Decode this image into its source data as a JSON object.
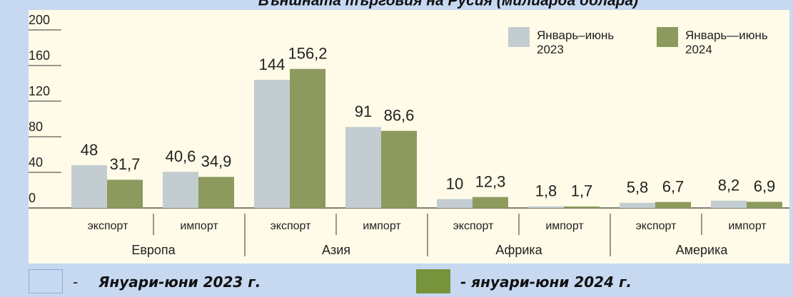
{
  "chart_data": {
    "type": "bar",
    "title": "Външната търговия на Русия (милиарда долара)",
    "groups": [
      "Европа",
      "Азия",
      "Африка",
      "Америка"
    ],
    "categories": [
      "экспорт",
      "импорт",
      "экспорт",
      "импорт",
      "экспорт",
      "импорт",
      "экспорт",
      "импорт"
    ],
    "series": [
      {
        "name": "Январь–июнь 2023",
        "color": "#c3ccd0",
        "values": [
          48,
          40.6,
          144,
          91,
          10,
          1.8,
          5.8,
          8.2
        ],
        "value_labels": [
          "48",
          "40,6",
          "144",
          "91",
          "10",
          "1,8",
          "5,8",
          "8,2"
        ]
      },
      {
        "name": "Январь—июнь 2024",
        "color": "#8c9a5e",
        "values": [
          31.7,
          34.9,
          156.2,
          86.6,
          12.3,
          1.7,
          6.7,
          6.9
        ],
        "value_labels": [
          "31,7",
          "34,9",
          "156,2",
          "86,6",
          "12,3",
          "1,7",
          "6,7",
          "6,9"
        ]
      }
    ],
    "ylim": [
      0,
      200
    ],
    "yticks": [
      0,
      40,
      80,
      120,
      160,
      200
    ],
    "bottom_legend": [
      {
        "prefix": "-",
        "label": "Януари-юни 2023 г.",
        "color": "#c6d9f1"
      },
      {
        "label": "- януари-юни 2024 г.",
        "color": "#77933c"
      }
    ]
  }
}
